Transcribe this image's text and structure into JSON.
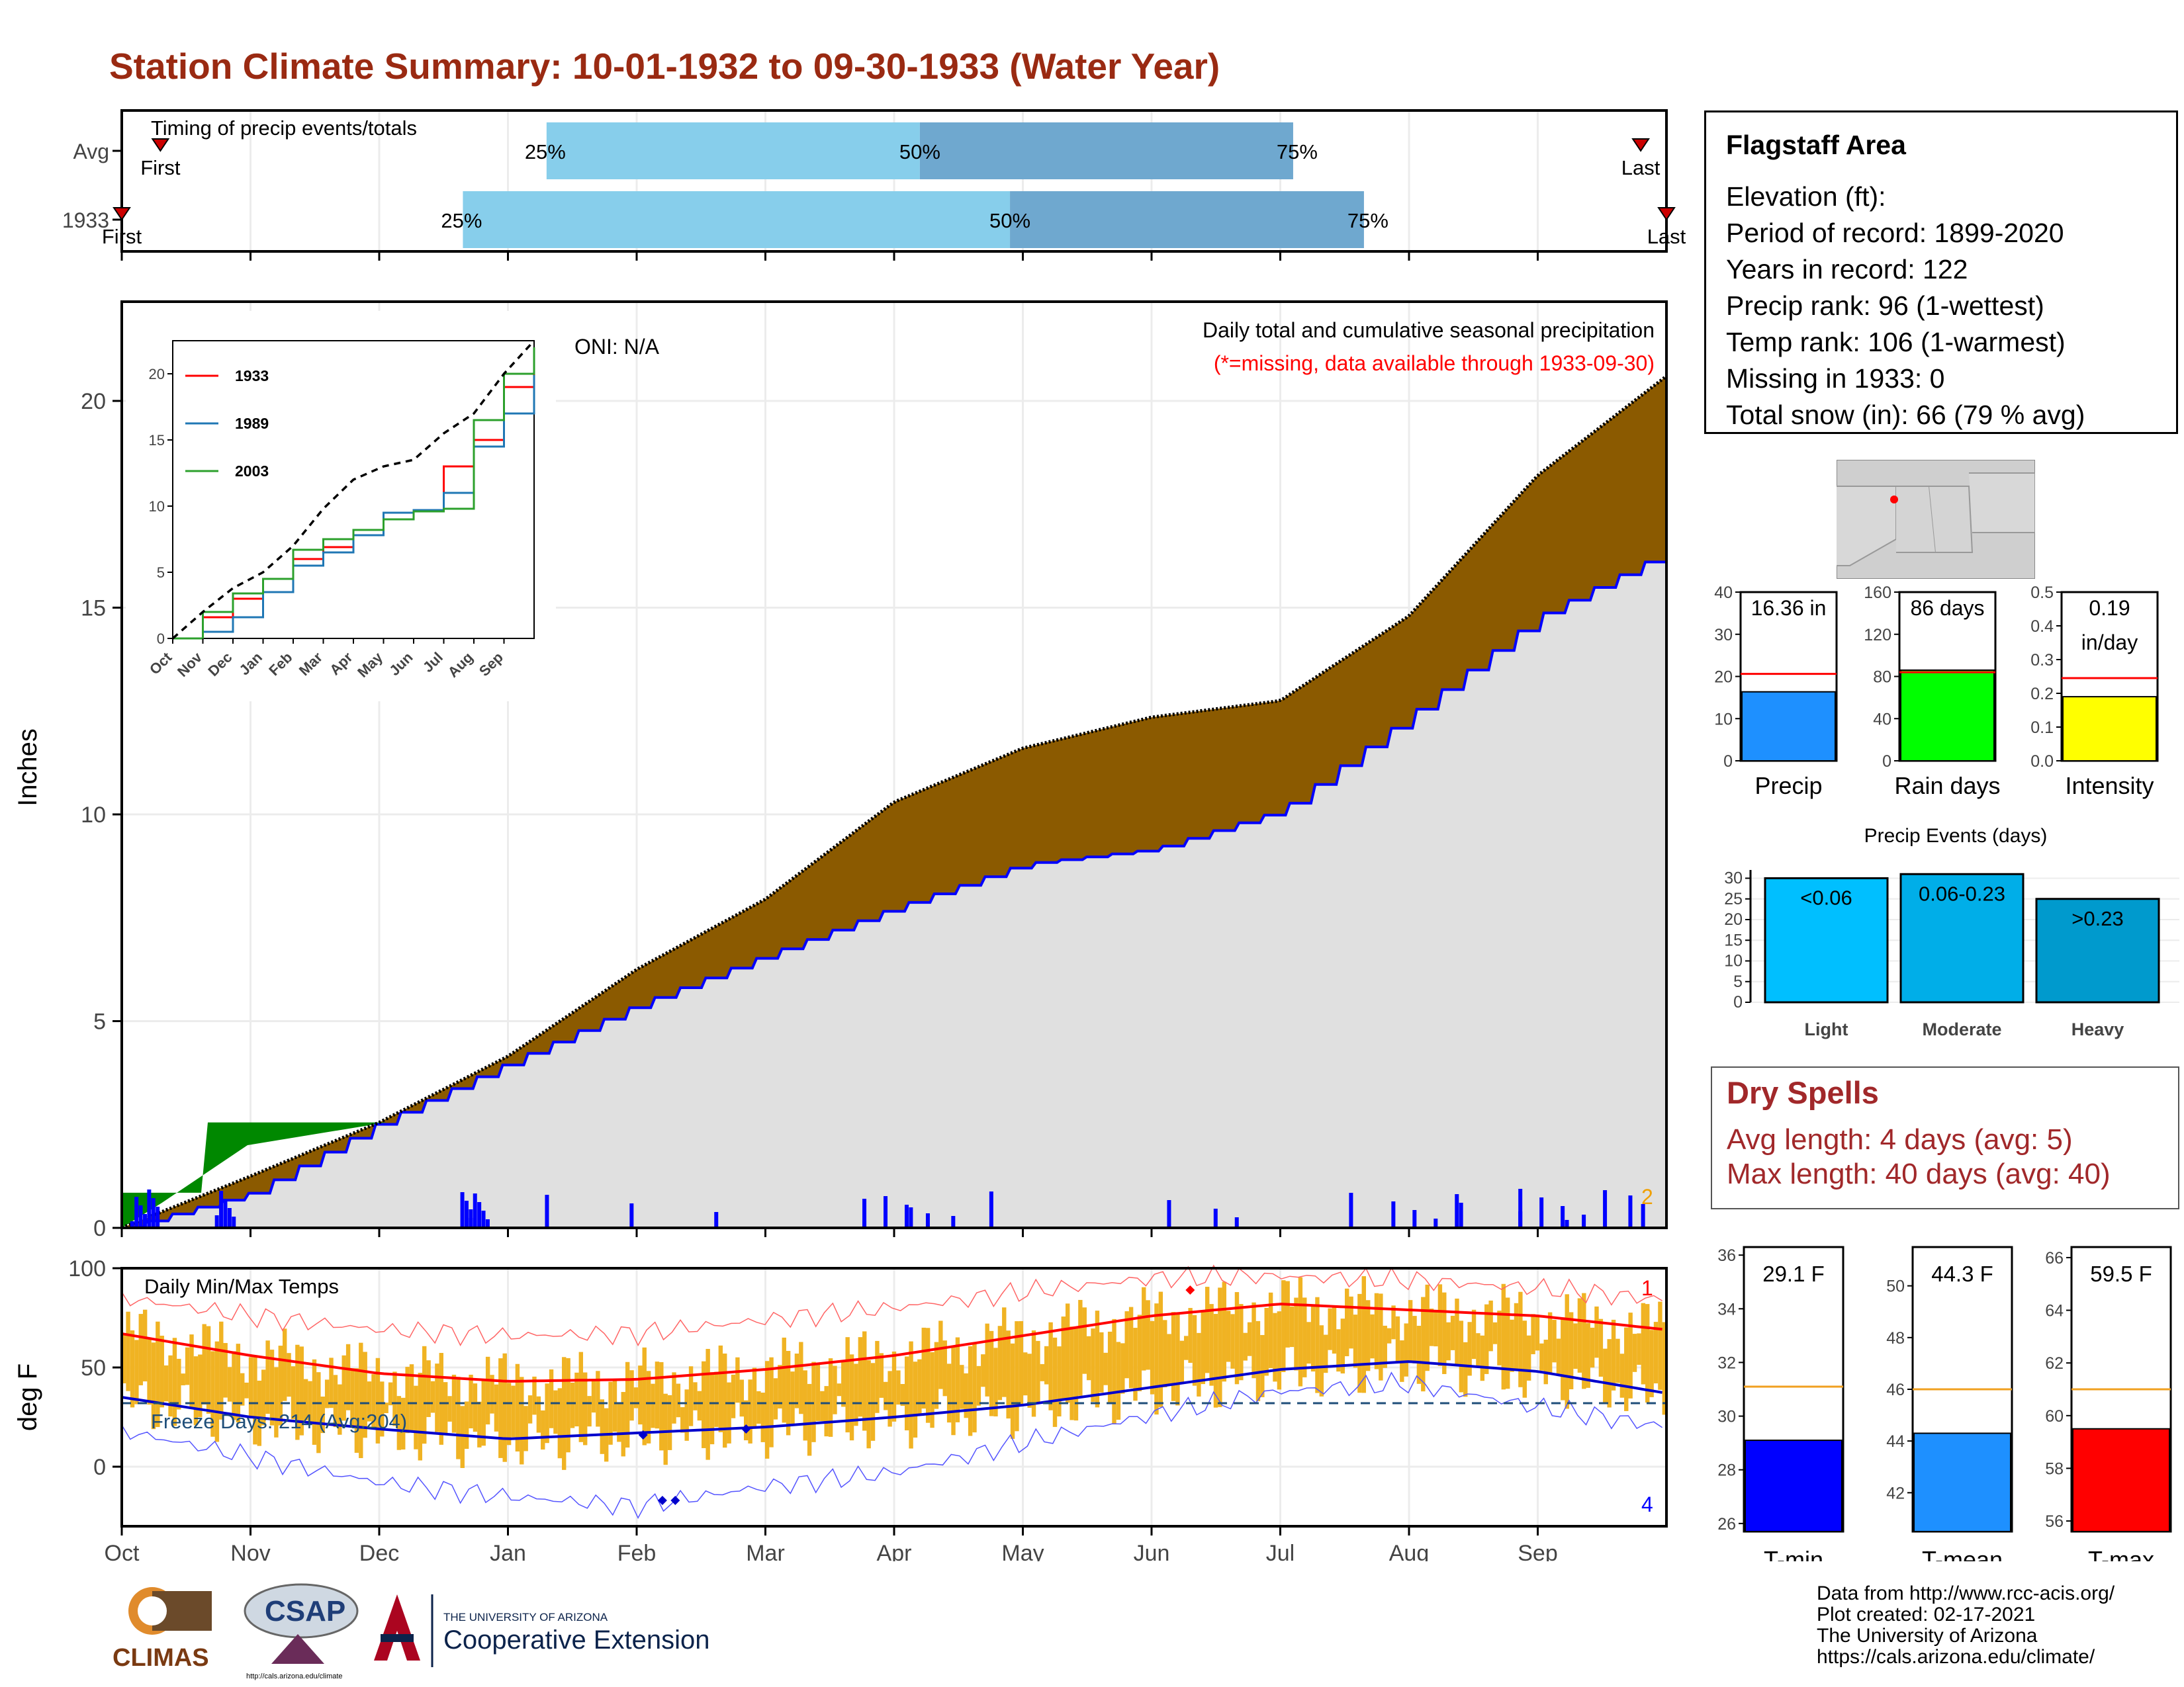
{
  "title": "Station Climate Summary: 10-01-1932 to 09-30-1933 (Water Year)",
  "colors": {
    "title": "#9a2a12",
    "quartile_light": "#87ceeb",
    "quartile_dark": "#6fa8cf",
    "cumulative_fill": "#8b5a00",
    "deficit_fill": "#008800",
    "avg_fill": "#e0e0e0",
    "avg_line": "#0000ff",
    "temp_bar": "#f0b323",
    "max_line": "#ff0000",
    "min_line": "#0000cc",
    "dry_spell_text": "#a1282a"
  },
  "timing": {
    "caption": "Timing of precip events/totals",
    "rows": [
      {
        "label": "Avg",
        "first_label": "First",
        "last_label": "Last",
        "q25": "25%",
        "q50": "50%",
        "q75": "75%",
        "first_month": 0.3,
        "last_month": 11.8,
        "p25_month": 3.3,
        "p50_month": 6.2,
        "p75_month": 9.1
      },
      {
        "label": "1933",
        "first_label": "First",
        "last_label": "Last",
        "q25": "25%",
        "q50": "50%",
        "q75": "75%",
        "first_month": 0.0,
        "last_month": 12.0,
        "p25_month": 2.65,
        "p50_month": 6.9,
        "p75_month": 9.65
      }
    ]
  },
  "precip_panel": {
    "ylabel": "Inches",
    "caption": "Daily total and cumulative seasonal precipitation",
    "missing_note": "(*=missing, data available through 1933-09-30)",
    "oni": "ONI: N/A",
    "corner_count": "2",
    "y_ticks": [
      "0",
      "5",
      "10",
      "15",
      "20"
    ],
    "ylim": [
      0,
      22.4
    ]
  },
  "inset": {
    "x_ticks": [
      "Oct",
      "Nov",
      "Dec",
      "Jan",
      "Feb",
      "Mar",
      "Apr",
      "May",
      "Jun",
      "Jul",
      "Aug",
      "Sep"
    ],
    "y_ticks": [
      "0",
      "5",
      "10",
      "15",
      "20"
    ],
    "legend": [
      "1933",
      "1989",
      "2003"
    ]
  },
  "temp_panel": {
    "ylabel": "deg F",
    "caption": "Daily Min/Max Temps",
    "freeze_text": "Freeze Days: 214 (Avg:204)",
    "record_high_count": "1",
    "record_low_count": "4",
    "y_ticks": [
      "0",
      "50",
      "100"
    ],
    "x_ticks": [
      "Oct",
      "Nov",
      "Dec",
      "Jan",
      "Feb",
      "Mar",
      "Apr",
      "May",
      "Jun",
      "Jul",
      "Aug",
      "Sep"
    ]
  },
  "station_info": {
    "name": "Flagstaff Area",
    "elevation": "Elevation (ft):",
    "period": "Period of record: 1899-2020",
    "years": "Years in record: 122",
    "precip_rank": "Precip rank: 96 (1-wettest)",
    "temp_rank": "Temp rank: 106 (1-warmest)",
    "missing": "Missing in 1933: 0",
    "snow": "Total snow (in): 66 (79 % avg)"
  },
  "mini_bars": [
    {
      "name": "Precip",
      "label": "16.36 in",
      "value": 16.36,
      "avg": 20.6,
      "ymax": 40,
      "ticks": [
        "0",
        "10",
        "20",
        "30",
        "40"
      ],
      "color": "#1e90ff"
    },
    {
      "name": "Rain days",
      "label": "86 days",
      "value": 86,
      "avg": 84,
      "ymax": 160,
      "ticks": [
        "0",
        "40",
        "80",
        "120",
        "160"
      ],
      "color": "#00ff00"
    },
    {
      "name": "Intensity",
      "label": "0.19",
      "label2": "in/day",
      "value": 0.19,
      "avg": 0.245,
      "ymax": 0.5,
      "ticks": [
        "0.0",
        "0.1",
        "0.2",
        "0.3",
        "0.4",
        "0.5"
      ],
      "color": "#ffff00"
    }
  ],
  "events": {
    "title": "Precip Events (days)",
    "ymax": 32,
    "ticks": [
      "0",
      "5",
      "10",
      "15",
      "20",
      "25",
      "30"
    ],
    "bars": [
      {
        "category": "Light",
        "label": "<0.06",
        "value": 30,
        "color": "#00bfff"
      },
      {
        "category": "Moderate",
        "label": "0.06-0.23",
        "value": 31,
        "color": "#00aee8"
      },
      {
        "category": "Heavy",
        "label": ">0.23",
        "value": 25,
        "color": "#009acd"
      }
    ]
  },
  "dry_spells": {
    "title": "Dry Spells",
    "avg_length": "Avg length: 4 days (avg: 5)",
    "max_length": "Max length: 40 days (avg: 40)"
  },
  "temp_bars": [
    {
      "name": "T-min",
      "label": "29.1 F",
      "value": 29.1,
      "avg": 31.1,
      "ymin": 25.7,
      "ymax": 36.3,
      "ticks": [
        26,
        28,
        30,
        32,
        34,
        36
      ],
      "color": "#0000ff"
    },
    {
      "name": "T-mean",
      "label": "44.3 F",
      "value": 44.3,
      "avg": 46.0,
      "ymin": 40.5,
      "ymax": 51.5,
      "ticks": [
        42,
        44,
        46,
        48,
        50
      ],
      "color": "#1e90ff"
    },
    {
      "name": "T-max",
      "label": "59.5 F",
      "value": 59.5,
      "avg": 61.0,
      "ymin": 55.6,
      "ymax": 66.4,
      "ticks": [
        56,
        58,
        60,
        62,
        64,
        66
      ],
      "color": "#ff0000"
    }
  ],
  "credits": [
    "Data from http://www.rcc-acis.org/",
    "Plot created: 02-17-2021",
    "The University of Arizona",
    "https://cals.arizona.edu/climate/"
  ],
  "logos": {
    "climas": "CLIMAS",
    "csap": "CSAP",
    "csap_url": "http://cals.arizona.edu/climate",
    "ua_small": "THE UNIVERSITY OF ARIZONA",
    "ua_big": "Cooperative Extension"
  },
  "chart_data": [
    {
      "type": "bar",
      "title": "Timing of precip events/totals",
      "categories": [
        "Avg",
        "1933"
      ],
      "series": [
        {
          "name": "25%",
          "values": [
            3.3,
            2.65
          ]
        },
        {
          "name": "50%",
          "values": [
            6.2,
            6.9
          ]
        },
        {
          "name": "75%",
          "values": [
            9.1,
            9.65
          ]
        }
      ]
    },
    {
      "type": "area",
      "title": "Daily total and cumulative seasonal precipitation",
      "ylabel": "Inches",
      "ylim": [
        0,
        22.4
      ],
      "x": [
        "Oct",
        "Nov",
        "Dec",
        "Jan",
        "Feb",
        "Mar",
        "Apr",
        "May",
        "Jun",
        "Jul",
        "Aug",
        "Sep",
        "Sep 30"
      ],
      "series": [
        {
          "name": "Average cumulative",
          "values": [
            0.0,
            1.25,
            2.55,
            4.15,
            6.25,
            7.95,
            10.3,
            11.6,
            12.35,
            12.75,
            14.8,
            18.2,
            20.6
          ]
        },
        {
          "name": "1933 cumulative",
          "values": [
            0.0,
            0.85,
            2.55,
            4.0,
            5.4,
            6.6,
            7.75,
            8.8,
            9.15,
            10.1,
            12.4,
            14.8,
            16.36
          ]
        }
      ]
    },
    {
      "type": "line",
      "title": "Daily Min/Max Temps",
      "ylabel": "deg F",
      "x": [
        "Oct",
        "Nov",
        "Dec",
        "Jan",
        "Feb",
        "Mar",
        "Apr",
        "May",
        "Jun",
        "Jul",
        "Aug",
        "Sep",
        "Sep 30"
      ],
      "series": [
        {
          "name": "Avg max",
          "values": [
            67,
            56,
            47,
            43,
            44,
            49,
            56,
            66,
            76,
            82,
            79,
            76,
            69
          ]
        },
        {
          "name": "Avg min",
          "values": [
            35,
            25,
            19,
            14,
            17,
            20,
            25,
            31,
            40,
            49,
            53,
            48,
            37
          ]
        },
        {
          "name": "Record max",
          "values": [
            85,
            76,
            69,
            66,
            67,
            74,
            80,
            88,
            95,
            96,
            94,
            90,
            84
          ]
        },
        {
          "name": "Record min",
          "values": [
            18,
            5,
            -8,
            -15,
            -20,
            -10,
            -3,
            12,
            26,
            38,
            42,
            30,
            20
          ]
        }
      ],
      "ylim": [
        -30,
        100
      ]
    },
    {
      "type": "line",
      "title": "",
      "x": [
        "Oct",
        "Nov",
        "Dec",
        "Jan",
        "Feb",
        "Mar",
        "Apr",
        "May",
        "Jun",
        "Jul",
        "Aug",
        "Sep",
        "Sep 30"
      ],
      "series": [
        {
          "name": "1933",
          "values": [
            0,
            1.6,
            3.0,
            3.5,
            6.0,
            6.9,
            7.8,
            9.5,
            9.7,
            13.0,
            15.0,
            19.0,
            20.2
          ]
        },
        {
          "name": "1989",
          "values": [
            0,
            0.5,
            1.6,
            3.5,
            5.5,
            6.5,
            7.8,
            9.5,
            9.7,
            11.0,
            14.5,
            17.0,
            19.9
          ]
        },
        {
          "name": "2003",
          "values": [
            0,
            2.0,
            3.4,
            4.5,
            6.7,
            7.5,
            8.2,
            9.0,
            9.6,
            9.8,
            16.5,
            20.0,
            22.0
          ]
        },
        {
          "name": "Average",
          "values": [
            0,
            2.0,
            3.8,
            5.0,
            7.0,
            9.8,
            12.0,
            13.0,
            13.5,
            15.5,
            17.0,
            20.0,
            22.5
          ]
        }
      ],
      "ylim": [
        0,
        22.5
      ]
    },
    {
      "type": "bar",
      "categories": [
        "Precip",
        "Rain days",
        "Intensity"
      ],
      "values": [
        16.36,
        86,
        0.19
      ]
    },
    {
      "type": "bar",
      "title": "Precip Events (days)",
      "categories": [
        "Light",
        "Moderate",
        "Heavy"
      ],
      "values": [
        30,
        31,
        25
      ]
    },
    {
      "type": "bar",
      "categories": [
        "T-min",
        "T-mean",
        "T-max"
      ],
      "values": [
        29.1,
        44.3,
        59.5
      ]
    }
  ]
}
